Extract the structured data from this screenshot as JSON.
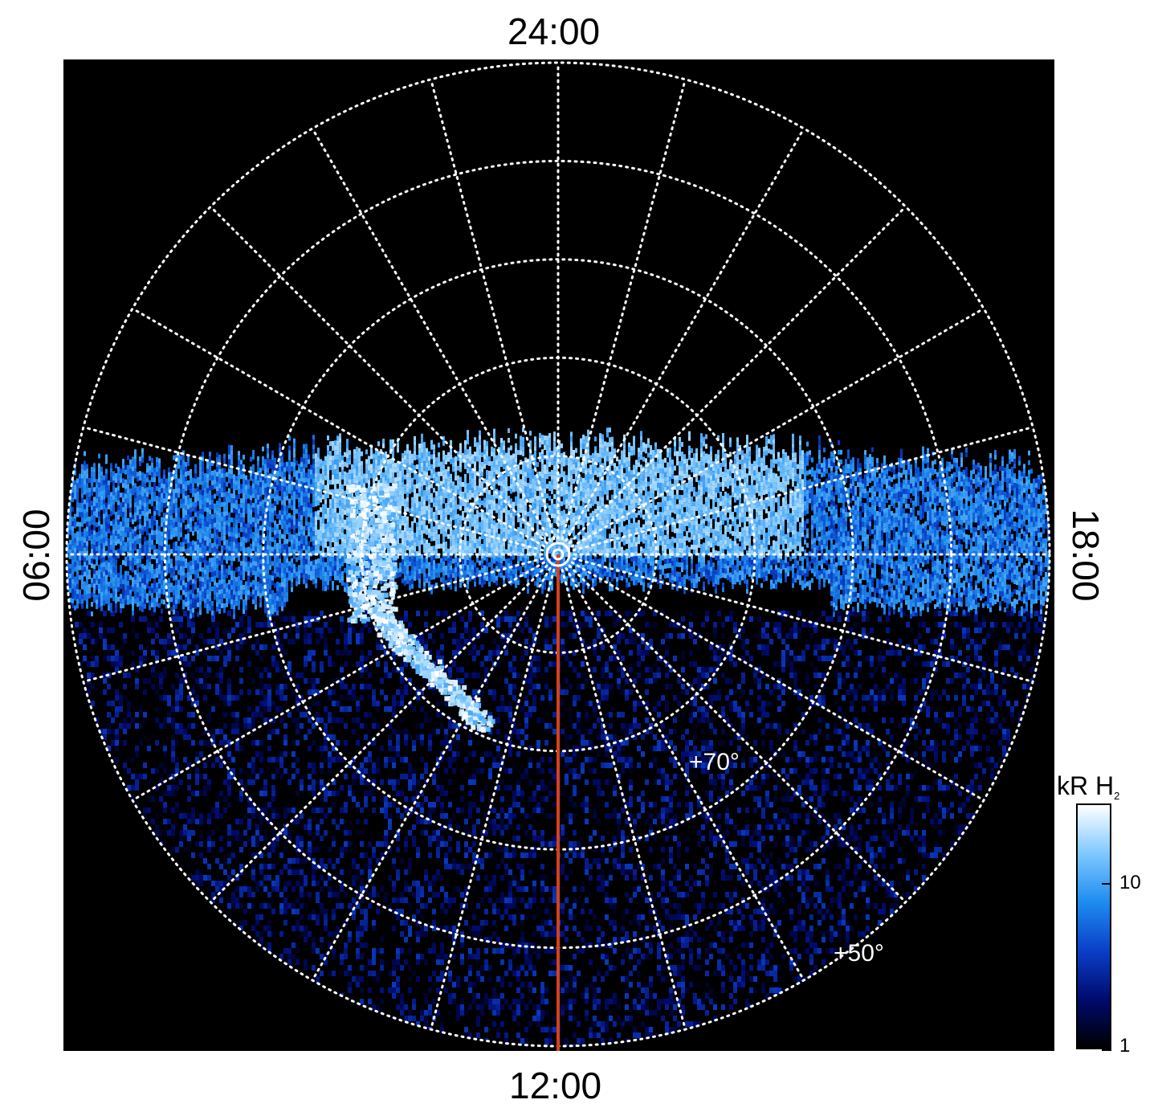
{
  "chart_data": {
    "type": "heatmap",
    "projection": "polar",
    "title": "",
    "local_time_labels": {
      "top": "24:00",
      "bottom": "12:00",
      "left": "06:00",
      "right": "18:00"
    },
    "latitude_labels": [
      "+70°",
      "+50°"
    ],
    "latitude_circles_deg": [
      90,
      80,
      70,
      60,
      50,
      40
    ],
    "meridian_spacing_hours": 1,
    "grid": "dotted-white",
    "colorbar": {
      "title": "kR H",
      "title_subscript": "2",
      "scale": "log",
      "range": [
        1,
        30
      ],
      "tick_labels": [
        "1",
        "10"
      ],
      "tick_values": [
        1,
        10
      ],
      "colors": [
        "#000000",
        "#000a6e",
        "#0a3fc8",
        "#1e8cf0",
        "#7fc8ff",
        "#ffffff"
      ]
    },
    "reference_line": {
      "color": "#d2421e",
      "from_lt": "pole",
      "to_lt": "12:00"
    },
    "emission_features": [
      {
        "name": "main-oval-band",
        "lt_range": [
          "06:00",
          "18:00"
        ],
        "intensity_kR": 8
      },
      {
        "name": "bright-dawn-spot",
        "lt": "06:30",
        "intensity_kR": 30
      },
      {
        "name": "nightside-diffuse",
        "lt_range": [
          "21:00",
          "03:00"
        ],
        "intensity_kR": 15
      },
      {
        "name": "dayside-noise",
        "lt_range": [
          "06:00",
          "18:00"
        ],
        "intensity_kR": 2
      }
    ]
  }
}
